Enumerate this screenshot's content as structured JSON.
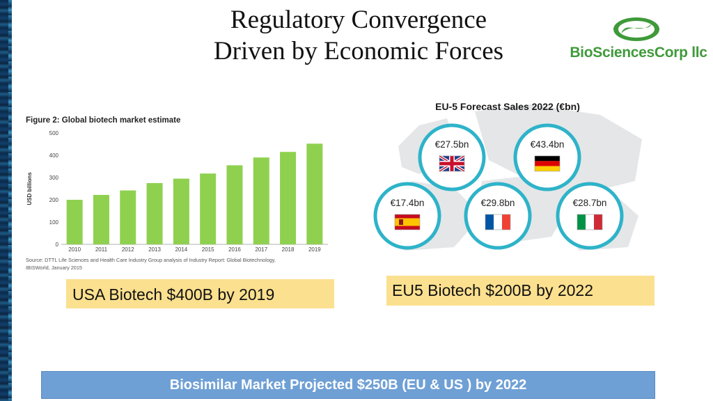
{
  "slide": {
    "title_line1": "Regulatory Convergence",
    "title_line2": "Driven by Economic Forces"
  },
  "logo": {
    "text": "BioSciencesCorp llc",
    "color": "#3f9a3a"
  },
  "chart_data": [
    {
      "type": "bar",
      "title": "Figure 2: Global biotech market estimate",
      "ylabel": "USD billions",
      "xlabel": "",
      "categories": [
        "2010",
        "2011",
        "2012",
        "2013",
        "2014",
        "2015",
        "2016",
        "2017",
        "2018",
        "2019"
      ],
      "values": [
        200,
        222,
        242,
        275,
        295,
        318,
        355,
        390,
        415,
        452
      ],
      "ylim": [
        0,
        500
      ],
      "yticks": [
        0,
        100,
        200,
        300,
        400,
        500
      ],
      "grid": false,
      "bar_color": "#8fd14f",
      "source_line1": "Source: DTTL Life Sciences and Health Care Industry Group analysis of Industry Report: Global Biotechnology,",
      "source_line2": "IBISWorld, January 2015"
    },
    {
      "type": "table",
      "title": "EU-5 Forecast Sales 2022 (€bn)",
      "entries": [
        {
          "country": "UK",
          "value": "€27.5bn",
          "flag": "uk-flag"
        },
        {
          "country": "Germany",
          "value": "€43.4bn",
          "flag": "germany-flag"
        },
        {
          "country": "Spain",
          "value": "€17.4bn",
          "flag": "spain-flag"
        },
        {
          "country": "France",
          "value": "€29.8bn",
          "flag": "france-flag"
        },
        {
          "country": "Italy",
          "value": "€28.7bn",
          "flag": "italy-flag"
        }
      ],
      "ring_color": "#2eb3c9"
    }
  ],
  "callouts": {
    "usa": "USA Biotech $400B by 2019",
    "eu": "EU5 Biotech $200B by 2022",
    "color": "#fbe08f"
  },
  "banner": {
    "text": "Biosimilar Market Projected $250B (EU & US ) by 2022",
    "color": "#6fa0d5"
  }
}
